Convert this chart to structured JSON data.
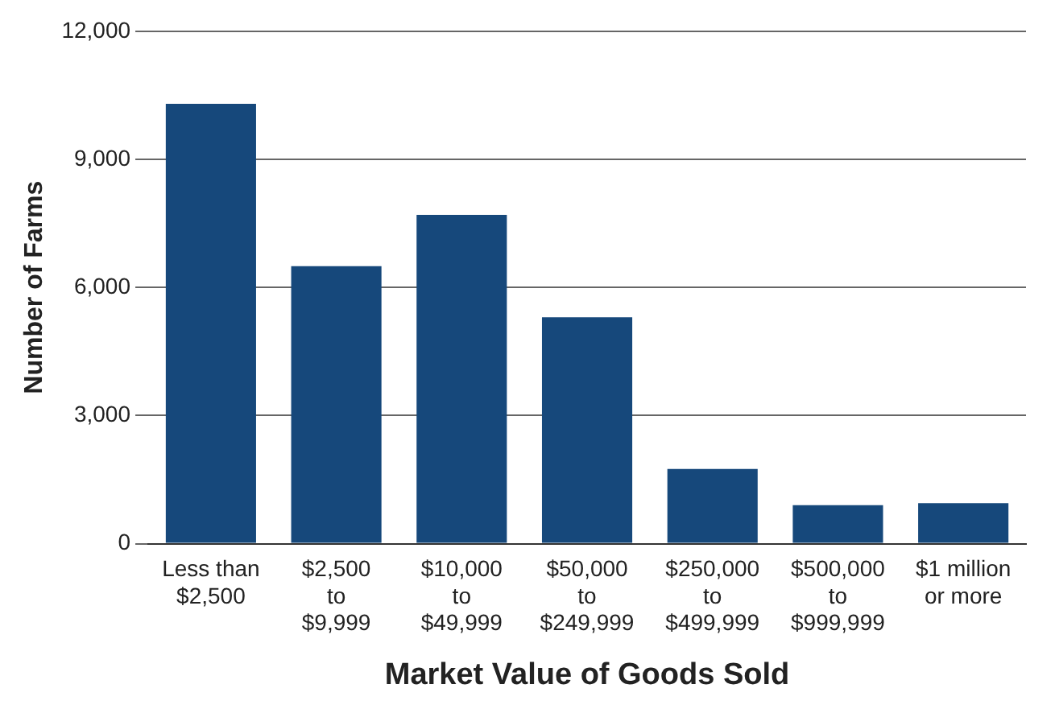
{
  "chart_data": {
    "type": "bar",
    "xlabel": "Market Value of Goods Sold",
    "ylabel": "Number of Farms",
    "categories": [
      "Less than\n$2,500",
      "$2,500\nto\n$9,999",
      "$10,000\nto\n$49,999",
      "$50,000\nto\n$249,999",
      "$250,000\nto\n$499,999",
      "$500,000\nto\n$999,999",
      "$1 million\nor more"
    ],
    "values": [
      10300,
      6500,
      7700,
      5300,
      1750,
      900,
      950
    ],
    "color": "#16487b",
    "ylim": [
      0,
      12000
    ],
    "yticks": [
      0,
      {
        "value": 3000,
        "label": "3,000"
      },
      {
        "value": 6000,
        "label": "6,000"
      },
      {
        "value": 9000,
        "label": "9,000"
      },
      {
        "value": 12000,
        "label": "12,000"
      }
    ],
    "grid": "y",
    "legend": false
  }
}
